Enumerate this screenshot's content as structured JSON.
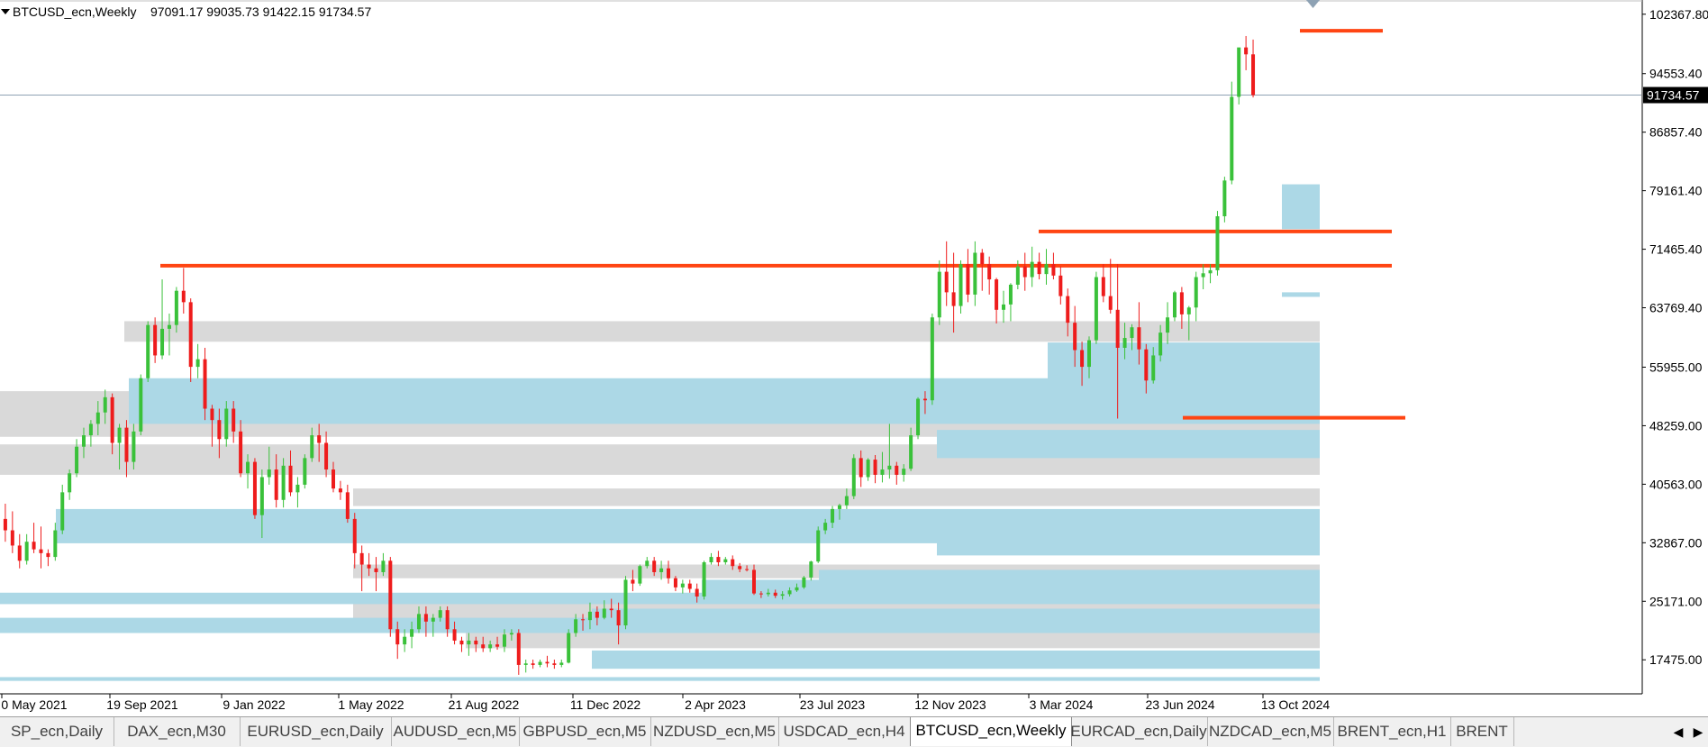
{
  "header": {
    "symbol_label": "BTCUSD_ecn,Weekly",
    "ohlc": "97091.17 99035.73 91422.15 91734.57"
  },
  "colors": {
    "bull": "#3ac13a",
    "bear": "#ee1c1c",
    "supply_zone": "#d9d9d9",
    "demand_zone": "#acd8e6",
    "level_line": "#ff4513",
    "price_line": "#8ea2b4",
    "grid_axis": "#000000"
  },
  "chart_data": {
    "type": "candlestick",
    "symbol": "BTCUSD_ecn",
    "timeframe": "Weekly",
    "y_ticks": [
      17475.0,
      25171.0,
      32867.0,
      40563.0,
      48259.0,
      55955.0,
      63769.4,
      71465.4,
      79161.4,
      86857.4,
      94553.4,
      102367.8
    ],
    "y_tick_labels": [
      "17475.00",
      "25171.00",
      "32867.00",
      "40563.00",
      "48259.00",
      "55955.00",
      "63769.40",
      "71465.40",
      "79161.40",
      "86857.40",
      "94553.40",
      "102367.80"
    ],
    "y_range": [
      13000,
      104000
    ],
    "x_tick_labels": [
      "0 May 2021",
      "19 Sep 2021",
      "9 Jan 2022",
      "1 May 2022",
      "21 Aug 2022",
      "11 Dec 2022",
      "2 Apr 2023",
      "23 Jul 2023",
      "12 Nov 2023",
      "3 Mar 2024",
      "23 Jun 2024",
      "13 Oct 2024"
    ],
    "current_price": 91734.57,
    "current_price_label": "91734.57",
    "candles_ohlc": [
      [
        38000,
        43000,
        33500,
        36000
      ],
      [
        36000,
        38000,
        33000,
        34500
      ],
      [
        34500,
        37000,
        31500,
        32500
      ],
      [
        32500,
        34000,
        29500,
        30500
      ],
      [
        30500,
        34000,
        30000,
        33000
      ],
      [
        33000,
        35500,
        31500,
        32000
      ],
      [
        32000,
        35000,
        29500,
        31500
      ],
      [
        31500,
        32000,
        29800,
        31000
      ],
      [
        31000,
        35500,
        30500,
        34500
      ],
      [
        34500,
        40500,
        34000,
        39500
      ],
      [
        39500,
        42500,
        38500,
        42000
      ],
      [
        42000,
        46500,
        41500,
        45500
      ],
      [
        45500,
        48000,
        44000,
        47000
      ],
      [
        47000,
        49000,
        45500,
        48500
      ],
      [
        48500,
        51500,
        47000,
        50000
      ],
      [
        50000,
        53000,
        48500,
        52000
      ],
      [
        52000,
        52500,
        44500,
        46000
      ],
      [
        46000,
        48500,
        42500,
        48000
      ],
      [
        48000,
        49000,
        41500,
        43500
      ],
      [
        43500,
        48500,
        42500,
        47500
      ],
      [
        47500,
        55000,
        47000,
        54500
      ],
      [
        54500,
        62000,
        54000,
        61500
      ],
      [
        61500,
        62500,
        56500,
        57500
      ],
      [
        57500,
        67500,
        57000,
        61000
      ],
      [
        61000,
        63000,
        57500,
        61500
      ],
      [
        61500,
        66500,
        60500,
        66000
      ],
      [
        66000,
        69000,
        63000,
        64500
      ],
      [
        64500,
        65000,
        54000,
        56000
      ],
      [
        56000,
        59000,
        54500,
        57000
      ],
      [
        57000,
        58500,
        49000,
        50500
      ],
      [
        50500,
        51000,
        45500,
        49000
      ],
      [
        49000,
        50500,
        44000,
        46500
      ],
      [
        46500,
        51500,
        45500,
        50500
      ],
      [
        50500,
        51500,
        46000,
        47500
      ],
      [
        47500,
        49000,
        41500,
        42000
      ],
      [
        42000,
        44500,
        40000,
        43500
      ],
      [
        43500,
        44000,
        36000,
        36500
      ],
      [
        36500,
        42500,
        33500,
        41500
      ],
      [
        41500,
        45500,
        40500,
        42500
      ],
      [
        42500,
        44500,
        37500,
        38500
      ],
      [
        38500,
        44000,
        37500,
        43000
      ],
      [
        43000,
        45000,
        39000,
        39500
      ],
      [
        39500,
        41500,
        37500,
        40500
      ],
      [
        40500,
        44500,
        40000,
        44000
      ],
      [
        44000,
        48000,
        43500,
        47000
      ],
      [
        47000,
        48500,
        43500,
        46000
      ],
      [
        46000,
        47500,
        41500,
        42500
      ],
      [
        42500,
        43500,
        39500,
        40000
      ],
      [
        40000,
        41000,
        38500,
        39500
      ],
      [
        39500,
        40500,
        35500,
        36000
      ],
      [
        36000,
        36800,
        29500,
        31500
      ],
      [
        31500,
        32500,
        26500,
        30000
      ],
      [
        30000,
        31500,
        28500,
        29500
      ],
      [
        29500,
        31000,
        26500,
        29000
      ],
      [
        29000,
        31500,
        28500,
        30500
      ],
      [
        30500,
        31000,
        20500,
        21500
      ],
      [
        21500,
        22500,
        17600,
        19500
      ],
      [
        19500,
        21500,
        18500,
        20500
      ],
      [
        20500,
        22500,
        19000,
        21500
      ],
      [
        21500,
        24500,
        21000,
        23500
      ],
      [
        23500,
        24500,
        20500,
        22500
      ],
      [
        22500,
        23500,
        20500,
        23000
      ],
      [
        23000,
        24500,
        22500,
        24000
      ],
      [
        24000,
        24500,
        20500,
        21500
      ],
      [
        21500,
        22500,
        19500,
        20000
      ],
      [
        20000,
        20500,
        18500,
        19500
      ],
      [
        19500,
        21000,
        18000,
        20000
      ],
      [
        20000,
        20500,
        18500,
        19500
      ],
      [
        19500,
        20500,
        18500,
        19000
      ],
      [
        19000,
        20000,
        18500,
        19500
      ],
      [
        19500,
        20500,
        18800,
        19200
      ],
      [
        19200,
        21500,
        18500,
        20800
      ],
      [
        20800,
        21500,
        20000,
        21000
      ],
      [
        21000,
        21500,
        15500,
        16800
      ],
      [
        16800,
        17500,
        15800,
        17000
      ],
      [
        17000,
        17500,
        16300,
        16800
      ],
      [
        16800,
        17500,
        16500,
        17200
      ],
      [
        17200,
        18000,
        16500,
        17000
      ],
      [
        17000,
        17500,
        16300,
        16800
      ],
      [
        16800,
        17500,
        16500,
        17100
      ],
      [
        17100,
        21500,
        17000,
        21000
      ],
      [
        21000,
        23500,
        20500,
        22800
      ],
      [
        22800,
        23500,
        21300,
        22700
      ],
      [
        22700,
        25000,
        21500,
        23800
      ],
      [
        23800,
        24500,
        22000,
        23000
      ],
      [
        23000,
        25300,
        22800,
        24200
      ],
      [
        24200,
        25500,
        23000,
        24000
      ],
      [
        24000,
        25000,
        19500,
        22000
      ],
      [
        22000,
        28500,
        21500,
        28000
      ],
      [
        28000,
        29300,
        26500,
        27500
      ],
      [
        27500,
        30000,
        27200,
        29800
      ],
      [
        29800,
        31000,
        29500,
        30500
      ],
      [
        30500,
        31000,
        28500,
        29000
      ],
      [
        29000,
        30500,
        28000,
        29500
      ],
      [
        29500,
        30500,
        27500,
        28200
      ],
      [
        28200,
        28500,
        26500,
        27000
      ],
      [
        27000,
        28000,
        26200,
        27500
      ],
      [
        27500,
        28000,
        26300,
        26800
      ],
      [
        26800,
        27500,
        25000,
        25800
      ],
      [
        25800,
        30500,
        25400,
        30300
      ],
      [
        30300,
        31500,
        30000,
        31000
      ],
      [
        31000,
        31800,
        29800,
        30300
      ],
      [
        30300,
        31000,
        30000,
        30700
      ],
      [
        30700,
        31200,
        29300,
        29800
      ],
      [
        29800,
        30200,
        29000,
        29400
      ],
      [
        29400,
        29900,
        29100,
        29300
      ],
      [
        29300,
        30000,
        26000,
        26200
      ],
      [
        26200,
        26500,
        25600,
        26100
      ],
      [
        26100,
        26800,
        25800,
        26300
      ],
      [
        26300,
        26700,
        25600,
        25900
      ],
      [
        25900,
        26500,
        25400,
        26100
      ],
      [
        26100,
        27000,
        25800,
        26600
      ],
      [
        26600,
        27500,
        26400,
        27000
      ],
      [
        27000,
        28500,
        26800,
        28300
      ],
      [
        28300,
        30500,
        27900,
        30400
      ],
      [
        30400,
        35000,
        30200,
        34500
      ],
      [
        34500,
        36000,
        34000,
        35500
      ],
      [
        35500,
        37700,
        34800,
        37300
      ],
      [
        37300,
        38000,
        35900,
        37800
      ],
      [
        37800,
        40000,
        37300,
        39000
      ],
      [
        39000,
        44500,
        38600,
        44000
      ],
      [
        44000,
        45000,
        40200,
        41500
      ],
      [
        41500,
        44000,
        41000,
        43800
      ],
      [
        43800,
        44400,
        40700,
        41800
      ],
      [
        41800,
        44800,
        40800,
        42500
      ],
      [
        42500,
        48500,
        41300,
        43000
      ],
      [
        43000,
        43500,
        40500,
        41800
      ],
      [
        41800,
        43200,
        40900,
        42600
      ],
      [
        42600,
        48000,
        42300,
        47000
      ],
      [
        47000,
        52000,
        46500,
        51800
      ],
      [
        51800,
        52800,
        49800,
        51600
      ],
      [
        51600,
        63000,
        51000,
        62500
      ],
      [
        62500,
        70000,
        61500,
        68500
      ],
      [
        68500,
        72500,
        64000,
        65800
      ],
      [
        65800,
        71000,
        60500,
        64000
      ],
      [
        64000,
        70000,
        63000,
        69500
      ],
      [
        69500,
        71500,
        64500,
        65500
      ],
      [
        65500,
        72500,
        64000,
        71000
      ],
      [
        71000,
        71500,
        66000,
        69500
      ],
      [
        69500,
        70500,
        65500,
        67500
      ],
      [
        67500,
        67700,
        61700,
        63500
      ],
      [
        63500,
        66000,
        61800,
        64200
      ],
      [
        64200,
        67000,
        62000,
        66800
      ],
      [
        66800,
        70000,
        66200,
        69200
      ],
      [
        69200,
        71000,
        66000,
        67800
      ],
      [
        67800,
        71800,
        66500,
        69800
      ],
      [
        69800,
        71000,
        67500,
        68200
      ],
      [
        68200,
        71500,
        66800,
        69500
      ],
      [
        69500,
        71000,
        67500,
        68000
      ],
      [
        68000,
        69200,
        64200,
        65300
      ],
      [
        65300,
        66300,
        60000,
        61800
      ],
      [
        61800,
        64000,
        56000,
        58200
      ],
      [
        58200,
        59300,
        53500,
        56000
      ],
      [
        56000,
        60000,
        54500,
        59500
      ],
      [
        59500,
        68500,
        59000,
        67800
      ],
      [
        67800,
        69500,
        64500,
        65300
      ],
      [
        65300,
        70200,
        63000,
        63500
      ],
      [
        63500,
        69500,
        49200,
        58500
      ],
      [
        58500,
        61800,
        57000,
        59800
      ],
      [
        59800,
        61600,
        58200,
        61200
      ],
      [
        61200,
        64500,
        56300,
        58300
      ],
      [
        58300,
        59000,
        52500,
        54200
      ],
      [
        54200,
        58600,
        53800,
        57500
      ],
      [
        57500,
        61500,
        56700,
        60500
      ],
      [
        60500,
        64500,
        59000,
        62500
      ],
      [
        62500,
        66000,
        62000,
        65800
      ],
      [
        65800,
        66500,
        61000,
        62900
      ],
      [
        62900,
        64000,
        59500,
        63800
      ],
      [
        63800,
        68500,
        62000,
        67800
      ],
      [
        67800,
        69500,
        66200,
        68300
      ],
      [
        68300,
        69500,
        67000,
        68700
      ],
      [
        68700,
        76500,
        68000,
        75800
      ],
      [
        75800,
        81000,
        75000,
        80500
      ],
      [
        80500,
        93500,
        80000,
        91500
      ],
      [
        91500,
        97500,
        90500,
        98000
      ],
      [
        98000,
        99500,
        95000,
        97091
      ],
      [
        97091,
        99035,
        91422,
        91734
      ]
    ],
    "supply_zones": [
      {
        "x_from": "0 May 2021",
        "low": 46800,
        "high": 52800
      },
      {
        "x_from": "0 May 2021",
        "low": 41800,
        "high": 45800
      },
      {
        "x_from": "19 Sep 2021",
        "low": 59300,
        "high": 62000
      },
      {
        "x_from": "9 Jan 2022",
        "low": 52800,
        "high": 53800
      },
      {
        "x_from": "9 Jan 2022",
        "low": 44000,
        "high": 45000
      },
      {
        "x_from": "1 May 2022",
        "low": 37700,
        "high": 40000
      },
      {
        "x_from": "1 May 2022",
        "low": 33000,
        "high": 35000
      },
      {
        "x_from": "1 May 2022",
        "low": 28200,
        "high": 30000
      },
      {
        "x_from": "1 May 2022",
        "low": 22000,
        "high": 25900
      },
      {
        "x_from": "21 Aug 2022",
        "low": 19000,
        "high": 21000
      }
    ],
    "demand_zones": [
      {
        "x_from": "0 May 2021",
        "low": 24800,
        "high": 26300
      },
      {
        "x_from": "0 May 2021",
        "low": 21000,
        "high": 23000
      },
      {
        "x_from": "0 May 2021",
        "low": 14700,
        "high": 15200
      },
      {
        "x_from": "0 May 2021",
        "low": 32800,
        "high": 37300
      },
      {
        "x_from": "19 Sep 2021",
        "low": 48500,
        "high": 54500
      },
      {
        "x_from": "11 Dec 2022",
        "low": 16300,
        "high": 18700
      },
      {
        "x_from": "11 Dec 2022",
        "low": 22400,
        "high": 24200
      },
      {
        "x_from": "2 Apr 2023",
        "low": 26200,
        "high": 28000
      },
      {
        "x_from": "23 Jul 2023",
        "low": 27800,
        "high": 29300
      },
      {
        "x_from": "12 Nov 2023",
        "low": 31200,
        "high": 34800
      },
      {
        "x_from": "12 Nov 2023",
        "low": 44000,
        "high": 47700
      },
      {
        "x_from": "3 Mar 2024",
        "low": 49000,
        "high": 51000
      },
      {
        "x_from": "3 Mar 2024",
        "low": 54200,
        "high": 59200
      },
      {
        "x_from": "13 Oct 2024",
        "low": 74100,
        "high": 80000
      },
      {
        "x_from": "13 Oct 2024",
        "low": 65200,
        "high": 65800
      }
    ],
    "levels": [
      {
        "price": 69300
      },
      {
        "price": 73800
      },
      {
        "price": 49300
      },
      {
        "price": 100200
      }
    ],
    "grid": false,
    "legend": "none"
  },
  "tabs": [
    {
      "label": "SP_ecn,Daily"
    },
    {
      "label": "DAX_ecn,M30"
    },
    {
      "label": "EURUSD_ecn,Daily"
    },
    {
      "label": "AUDUSD_ecn,M5"
    },
    {
      "label": "GBPUSD_ecn,M5"
    },
    {
      "label": "NZDUSD_ecn,M5"
    },
    {
      "label": "USDCAD_ecn,H4"
    },
    {
      "label": "BTCUSD_ecn,Weekly",
      "active": true
    },
    {
      "label": "EURCAD_ecn,Daily"
    },
    {
      "label": "NZDCAD_ecn,M5"
    },
    {
      "label": "BRENT_ecn,H1"
    },
    {
      "label": "BRENT"
    }
  ],
  "tab_nav": {
    "prev": "◀",
    "next": "▶"
  }
}
